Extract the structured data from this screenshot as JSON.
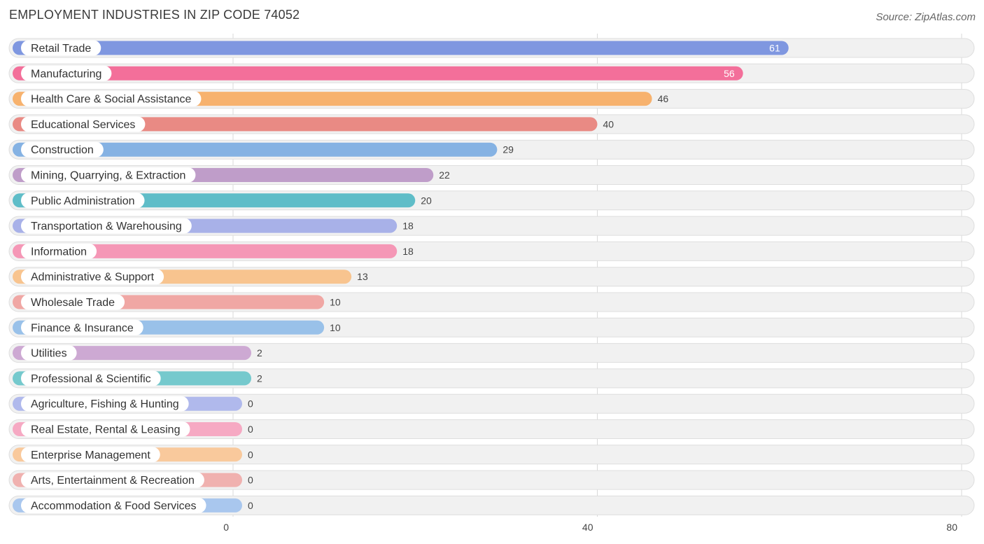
{
  "chart_data": {
    "type": "bar",
    "orientation": "horizontal",
    "title": "EMPLOYMENT INDUSTRIES IN ZIP CODE 74052",
    "source": "Source: ZipAtlas.com",
    "xlim": [
      0,
      80
    ],
    "ticks": [
      0,
      40,
      80
    ],
    "categories": [
      "Retail Trade",
      "Manufacturing",
      "Health Care & Social Assistance",
      "Educational Services",
      "Construction",
      "Mining, Quarrying, & Extraction",
      "Public Administration",
      "Transportation & Warehousing",
      "Information",
      "Administrative & Support",
      "Wholesale Trade",
      "Finance & Insurance",
      "Utilities",
      "Professional & Scientific",
      "Agriculture, Fishing & Hunting",
      "Real Estate, Rental & Leasing",
      "Enterprise Management",
      "Arts, Entertainment & Recreation",
      "Accommodation & Food Services"
    ],
    "values": [
      61,
      56,
      46,
      40,
      29,
      22,
      20,
      18,
      18,
      13,
      10,
      10,
      2,
      2,
      0,
      0,
      0,
      0,
      0
    ],
    "colors": [
      "#7f97e0",
      "#f36f9a",
      "#f7b26e",
      "#e98a84",
      "#85b2e3",
      "#bf9dc9",
      "#5fbdc8",
      "#a8b1e8",
      "#f597b6",
      "#f8c48f",
      "#f0a7a4",
      "#99c1e9",
      "#cda9d3",
      "#75c9cd",
      "#b0b9ec",
      "#f6a9c3",
      "#f9c99c",
      "#f0b1af",
      "#a9c7ee"
    ]
  }
}
